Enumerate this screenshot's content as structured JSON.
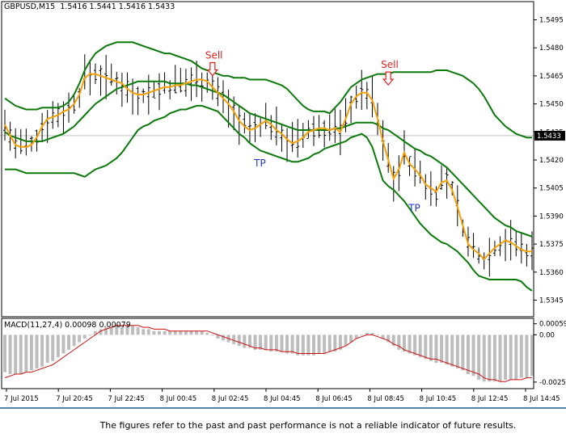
{
  "header": {
    "symbol_info": "GBPUSD,M15  1.5416 1.5441 1.5416 1.5433",
    "macd_info": "MACD(11,27,4) 0.00098 0.00079"
  },
  "disclaimer": "The figures refer to the past and past performance is not a reliable indicator of future results.",
  "colors": {
    "bollinger": "#0b7a0b",
    "ma": "#f5a000",
    "candles": "#000000",
    "macd_hist": "#bdbdbd",
    "macd_signal": "#d01010",
    "sell": "#e02020",
    "tp": "#1f35c8",
    "badge": "#000000"
  },
  "chart_data": [
    {
      "type": "line",
      "panel": "price",
      "y_ticks": [
        "1.5495",
        "1.5480",
        "1.5465",
        "1.5450",
        "1.5435",
        "1.5420",
        "1.5405",
        "1.5390",
        "1.5375",
        "1.5360",
        "1.5345"
      ],
      "ylim": [
        1.5337,
        1.5503
      ],
      "current_price": "1.5433",
      "x_ticks": [
        "7 Jul 2015",
        "7 Jul 20:45",
        "7 Jul 22:45",
        "8 Jul 00:45",
        "8 Jul 02:45",
        "8 Jul 04:45",
        "8 Jul 06:45",
        "8 Jul 08:45",
        "8 Jul 10:45",
        "8 Jul 12:45",
        "8 Jul 14:45"
      ],
      "bars": 100,
      "series": [
        {
          "role": "ma",
          "values": [
            1.5439,
            1.5433,
            1.5428,
            1.5427,
            1.5427,
            1.5428,
            1.5432,
            1.5438,
            1.5442,
            1.5443,
            1.5444,
            1.5446,
            1.5447,
            1.545,
            1.5455,
            1.5464,
            1.5466,
            1.5466,
            1.5465,
            1.5464,
            1.5463,
            1.5462,
            1.5461,
            1.5458,
            1.5456,
            1.5455,
            1.5455,
            1.5456,
            1.5457,
            1.5458,
            1.5459,
            1.5459,
            1.546,
            1.546,
            1.5461,
            1.5462,
            1.5463,
            1.5463,
            1.5462,
            1.5459,
            1.5456,
            1.5453,
            1.545,
            1.5446,
            1.5441,
            1.5438,
            1.5436,
            1.5437,
            1.5439,
            1.5441,
            1.5439,
            1.5436,
            1.5434,
            1.5431,
            1.5429,
            1.543,
            1.5432,
            1.5435,
            1.5436,
            1.5437,
            1.5437,
            1.5436,
            1.5437,
            1.5435,
            1.5442,
            1.545,
            1.5454,
            1.5456,
            1.5456,
            1.5452,
            1.5442,
            1.543,
            1.542,
            1.541,
            1.5415,
            1.5424,
            1.5418,
            1.5415,
            1.5412,
            1.5407,
            1.5405,
            1.5403,
            1.5408,
            1.5409,
            1.5404,
            1.5395,
            1.5385,
            1.5375,
            1.5372,
            1.537,
            1.5367,
            1.537,
            1.5373,
            1.5375,
            1.5377,
            1.5376,
            1.5374,
            1.5372,
            1.5371,
            1.5371
          ]
        },
        {
          "role": "bollinger-upper",
          "values": [
            1.5453,
            1.5451,
            1.5449,
            1.5448,
            1.5447,
            1.5447,
            1.5447,
            1.5448,
            1.5448,
            1.5448,
            1.5448,
            1.5449,
            1.5451,
            1.5455,
            1.5461,
            1.5468,
            1.5473,
            1.5477,
            1.5479,
            1.5481,
            1.5482,
            1.5483,
            1.5483,
            1.5483,
            1.5483,
            1.5482,
            1.5481,
            1.548,
            1.5479,
            1.5478,
            1.5477,
            1.5477,
            1.5476,
            1.5475,
            1.5474,
            1.5473,
            1.5471,
            1.5469,
            1.5468,
            1.5467,
            1.5466,
            1.5465,
            1.5465,
            1.5464,
            1.5464,
            1.5464,
            1.5463,
            1.5463,
            1.5463,
            1.5463,
            1.5462,
            1.5461,
            1.546,
            1.5458,
            1.5455,
            1.5452,
            1.5449,
            1.5447,
            1.5446,
            1.5446,
            1.5446,
            1.5445,
            1.5448,
            1.5451,
            1.5455,
            1.5459,
            1.5461,
            1.5463,
            1.5464,
            1.5465,
            1.5466,
            1.5466,
            1.5466,
            1.5467,
            1.5467,
            1.5467,
            1.5467,
            1.5467,
            1.5467,
            1.5467,
            1.5467,
            1.5468,
            1.5468,
            1.5468,
            1.5467,
            1.5466,
            1.5465,
            1.5463,
            1.5461,
            1.5458,
            1.5454,
            1.5449,
            1.5444,
            1.5441,
            1.5438,
            1.5436,
            1.5434,
            1.5433,
            1.5432,
            1.5432
          ]
        },
        {
          "role": "bollinger-middle",
          "values": [
            1.5435,
            1.5433,
            1.5432,
            1.5431,
            1.543,
            1.543,
            1.543,
            1.543,
            1.5431,
            1.5432,
            1.5433,
            1.5434,
            1.5436,
            1.5438,
            1.5441,
            1.5444,
            1.5447,
            1.545,
            1.5452,
            1.5454,
            1.5456,
            1.5458,
            1.5459,
            1.546,
            1.5461,
            1.5462,
            1.5462,
            1.5462,
            1.5462,
            1.5462,
            1.5462,
            1.5461,
            1.5461,
            1.5461,
            1.5461,
            1.546,
            1.546,
            1.5459,
            1.5458,
            1.5457,
            1.5456,
            1.5455,
            1.5453,
            1.5451,
            1.5449,
            1.5447,
            1.5445,
            1.5444,
            1.5443,
            1.5442,
            1.5441,
            1.544,
            1.5439,
            1.5438,
            1.5437,
            1.5436,
            1.5436,
            1.5436,
            1.5436,
            1.5436,
            1.5436,
            1.5436,
            1.5437,
            1.5437,
            1.5438,
            1.5439,
            1.544,
            1.544,
            1.544,
            1.544,
            1.5439,
            1.5437,
            1.5436,
            1.5434,
            1.5432,
            1.543,
            1.5428,
            1.5426,
            1.5425,
            1.5423,
            1.5422,
            1.542,
            1.5418,
            1.5416,
            1.5413,
            1.541,
            1.5407,
            1.5404,
            1.5401,
            1.5398,
            1.5395,
            1.5392,
            1.5389,
            1.5387,
            1.5385,
            1.5384,
            1.5382,
            1.5381,
            1.538,
            1.5379
          ]
        },
        {
          "role": "bollinger-lower",
          "values": [
            1.5415,
            1.5415,
            1.5415,
            1.5414,
            1.5413,
            1.5413,
            1.5413,
            1.5413,
            1.5413,
            1.5413,
            1.5413,
            1.5413,
            1.5413,
            1.5413,
            1.5412,
            1.5411,
            1.5413,
            1.5415,
            1.5416,
            1.5417,
            1.5419,
            1.5421,
            1.5424,
            1.5428,
            1.5432,
            1.5436,
            1.5438,
            1.5439,
            1.5441,
            1.5442,
            1.5443,
            1.5445,
            1.5446,
            1.5447,
            1.5447,
            1.5448,
            1.5449,
            1.5449,
            1.5448,
            1.5447,
            1.5446,
            1.5443,
            1.544,
            1.5437,
            1.5434,
            1.5432,
            1.5429,
            1.5427,
            1.5425,
            1.5424,
            1.5423,
            1.5422,
            1.5421,
            1.542,
            1.5419,
            1.5419,
            1.542,
            1.5421,
            1.5423,
            1.5424,
            1.5426,
            1.5427,
            1.5428,
            1.5429,
            1.543,
            1.5432,
            1.5433,
            1.5434,
            1.5432,
            1.5427,
            1.5418,
            1.5409,
            1.5406,
            1.5404,
            1.5401,
            1.5398,
            1.5394,
            1.539,
            1.5386,
            1.5383,
            1.538,
            1.5378,
            1.5376,
            1.5375,
            1.5373,
            1.5371,
            1.5368,
            1.5365,
            1.5361,
            1.5358,
            1.5357,
            1.5356,
            1.5356,
            1.5356,
            1.5356,
            1.5356,
            1.5356,
            1.5355,
            1.5352,
            1.535
          ]
        }
      ],
      "annotations": [
        {
          "label": "Sell",
          "kind": "sell",
          "bar": 39,
          "price": 1.5463
        },
        {
          "label": "Sell",
          "kind": "sell",
          "bar": 72,
          "price": 1.5458
        },
        {
          "label": "TP",
          "kind": "tp",
          "bar": 48,
          "price": 1.5427
        },
        {
          "label": "TP",
          "kind": "tp",
          "bar": 77,
          "price": 1.5403
        }
      ]
    },
    {
      "type": "bar",
      "panel": "macd",
      "title": "MACD(11,27,4) 0.00098 0.00079",
      "y_ticks": [
        "0.00059",
        "0.00",
        "-0.00253"
      ],
      "ylim": [
        -0.00275,
        0.00075
      ],
      "histogram": [
        -0.002,
        -0.0021,
        -0.0021,
        -0.0021,
        -0.002,
        -0.0019,
        -0.0018,
        -0.0017,
        -0.0015,
        -0.0014,
        -0.0012,
        -0.001,
        -0.0008,
        -0.0006,
        -0.0004,
        -0.0002,
        0.0,
        0.0002,
        0.0003,
        0.0004,
        0.0004,
        0.0005,
        0.0005,
        0.0005,
        0.0005,
        0.0004,
        0.0003,
        0.0003,
        0.0002,
        0.0002,
        0.0002,
        0.0002,
        0.0002,
        0.0002,
        0.0002,
        0.0002,
        0.0002,
        0.0002,
        0.0001,
        0.0,
        -0.0002,
        -0.0003,
        -0.0004,
        -0.0005,
        -0.0006,
        -0.0007,
        -0.0007,
        -0.0008,
        -0.0008,
        -0.0008,
        -0.0009,
        -0.0009,
        -0.0009,
        -0.001,
        -0.001,
        -0.0011,
        -0.0011,
        -0.0011,
        -0.0011,
        -0.001,
        -0.001,
        -0.0009,
        -0.0009,
        -0.0008,
        -0.0006,
        -0.0004,
        -0.0002,
        0.0,
        0.0001,
        0.0001,
        0.0,
        -0.0002,
        -0.0004,
        -0.0006,
        -0.0008,
        -0.0009,
        -0.001,
        -0.0011,
        -0.0012,
        -0.0013,
        -0.0014,
        -0.0015,
        -0.0015,
        -0.0016,
        -0.0017,
        -0.0018,
        -0.0019,
        -0.0021,
        -0.0022,
        -0.0024,
        -0.0025,
        -0.0025,
        -0.0025,
        -0.0025,
        -0.0024,
        -0.0024,
        -0.0024,
        -0.0023,
        -0.0023,
        -0.0022
      ],
      "signal": [
        -0.0023,
        -0.0022,
        -0.0021,
        -0.0021,
        -0.002,
        -0.002,
        -0.0019,
        -0.0018,
        -0.0017,
        -0.0016,
        -0.0014,
        -0.0012,
        -0.001,
        -0.0008,
        -0.0006,
        -0.0004,
        -0.0002,
        0.0,
        0.0002,
        0.0003,
        0.0004,
        0.0005,
        0.0005,
        0.0005,
        0.0005,
        0.0005,
        0.0004,
        0.0004,
        0.0003,
        0.0003,
        0.0003,
        0.0002,
        0.0002,
        0.0002,
        0.0002,
        0.0002,
        0.0002,
        0.0002,
        0.0002,
        0.0001,
        0.0,
        -0.0001,
        -0.0002,
        -0.0003,
        -0.0004,
        -0.0005,
        -0.0006,
        -0.0007,
        -0.0007,
        -0.0008,
        -0.0008,
        -0.0008,
        -0.0009,
        -0.0009,
        -0.0009,
        -0.001,
        -0.001,
        -0.001,
        -0.001,
        -0.001,
        -0.001,
        -0.0009,
        -0.0008,
        -0.0007,
        -0.0006,
        -0.0004,
        -0.0002,
        -0.0001,
        0.0,
        0.0,
        -0.0001,
        -0.0002,
        -0.0003,
        -0.0005,
        -0.0006,
        -0.0008,
        -0.0009,
        -0.001,
        -0.0011,
        -0.0012,
        -0.0013,
        -0.0013,
        -0.0014,
        -0.0015,
        -0.0016,
        -0.0017,
        -0.0018,
        -0.0019,
        -0.002,
        -0.0021,
        -0.0023,
        -0.0024,
        -0.0024,
        -0.0025,
        -0.0025,
        -0.0024,
        -0.0024,
        -0.0024,
        -0.0023,
        -0.0023
      ]
    }
  ]
}
